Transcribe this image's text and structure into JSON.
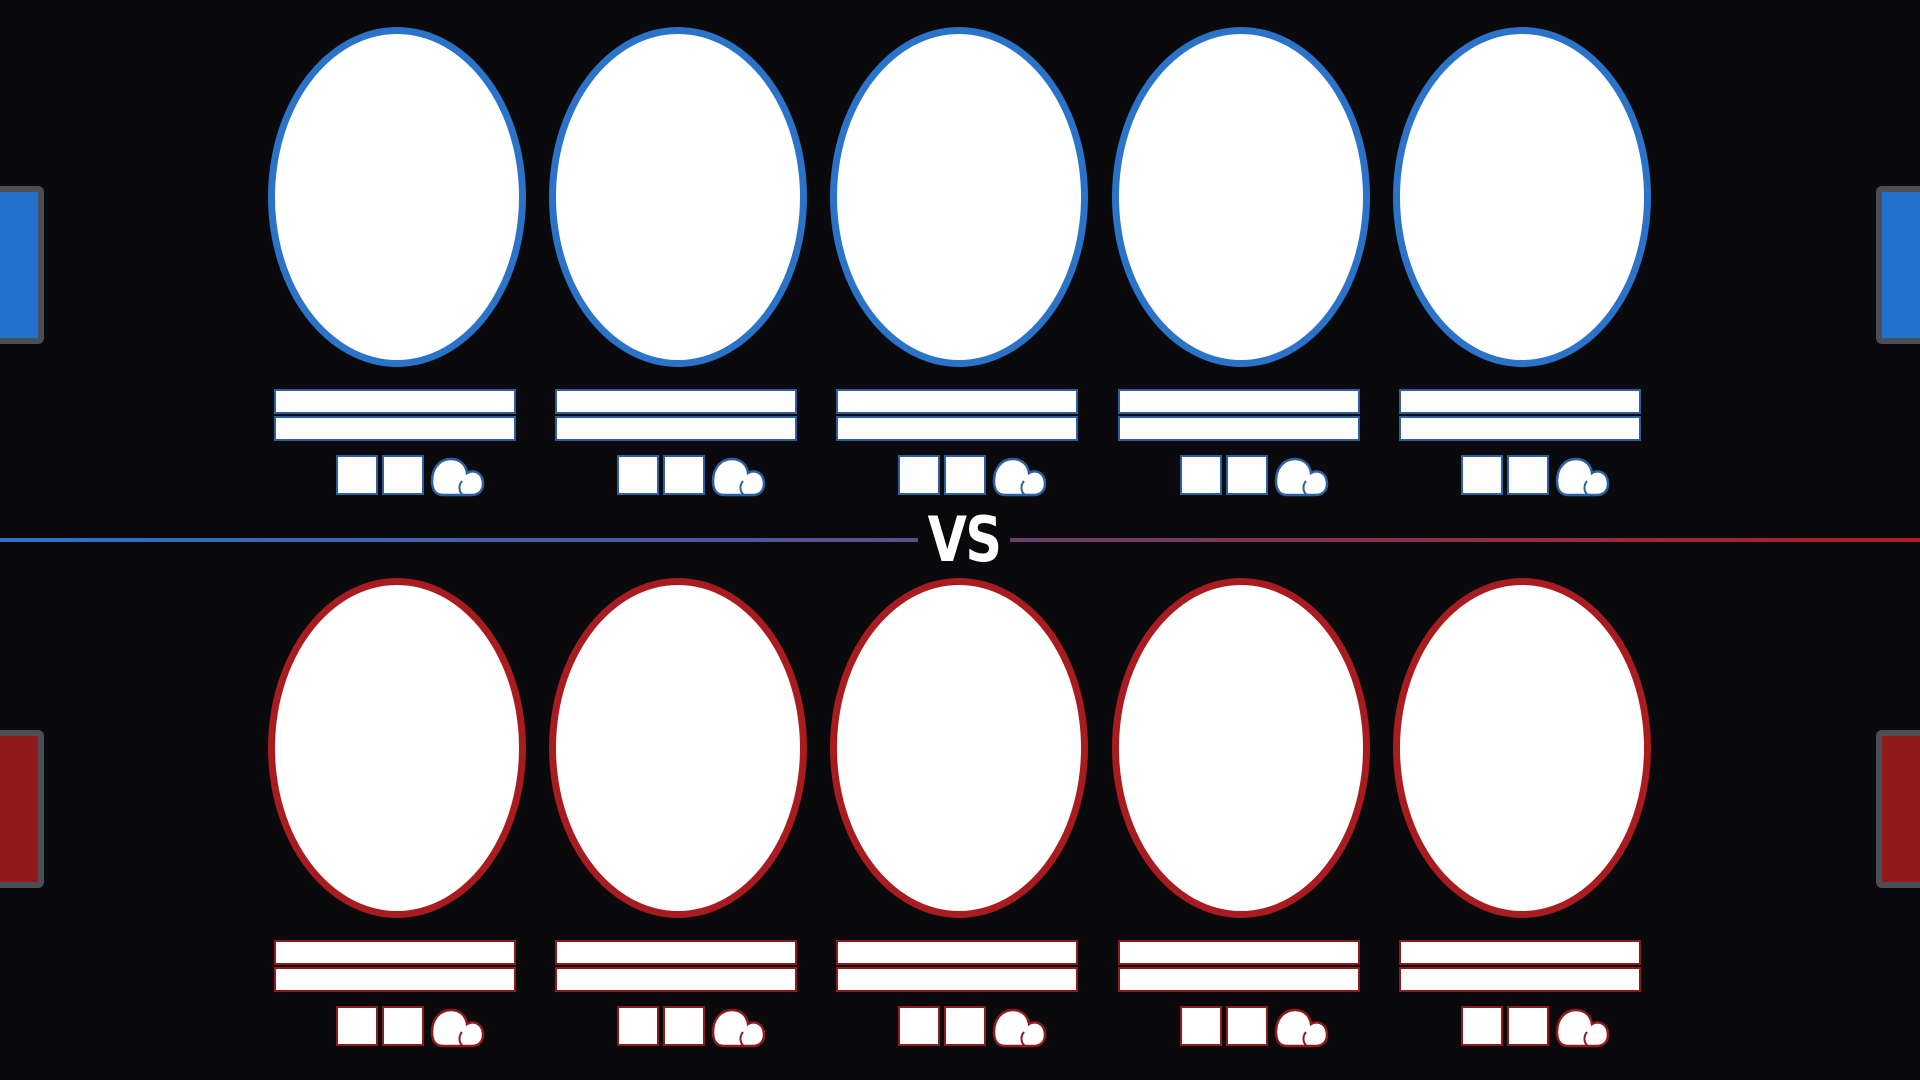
{
  "divider": {
    "label": "VS"
  },
  "colors": {
    "blue_team": "#2b73c9",
    "blue_tab": "#2271cc",
    "red_team": "#a81c1f",
    "red_tab": "#921a1b",
    "tab_border": "#4b4f55",
    "background": "#0a0a0d"
  },
  "teams": [
    {
      "side": "blue",
      "players": [
        {
          "name_line_1": "",
          "name_line_2": ""
        },
        {
          "name_line_1": "",
          "name_line_2": ""
        },
        {
          "name_line_1": "",
          "name_line_2": ""
        },
        {
          "name_line_1": "",
          "name_line_2": ""
        },
        {
          "name_line_1": "",
          "name_line_2": ""
        }
      ]
    },
    {
      "side": "red",
      "players": [
        {
          "name_line_1": "",
          "name_line_2": ""
        },
        {
          "name_line_1": "",
          "name_line_2": ""
        },
        {
          "name_line_1": "",
          "name_line_2": ""
        },
        {
          "name_line_1": "",
          "name_line_2": ""
        },
        {
          "name_line_1": "",
          "name_line_2": ""
        }
      ]
    }
  ],
  "icons": {
    "slot_1": "square-slot-icon",
    "slot_2": "square-slot-icon",
    "slot_3": "cloud-icon"
  }
}
